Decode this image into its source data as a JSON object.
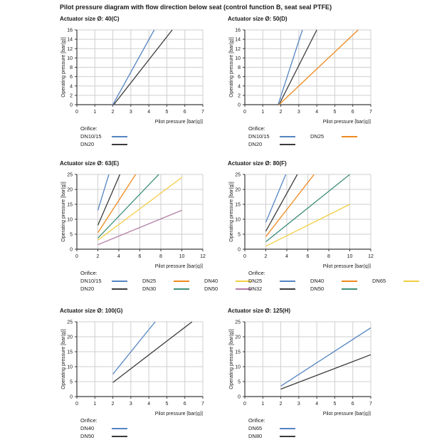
{
  "page_title": "Pilot pressure diagram with flow direction below seat (control function B, seat seal PTFE)",
  "palette": {
    "blue": "#5585c2",
    "dark": "#3b3b3b",
    "orange": "#ee8a1e",
    "teal": "#3f8f7a",
    "yellow": "#f2ce44",
    "purple": "#b07aa1"
  },
  "chart_data": [
    {
      "type": "line",
      "title": "Actuator size Ø: 40(C)",
      "xlabel": "Pilot pressure [bar(g)]",
      "ylabel": "Operating pressure [bar(g)]",
      "xlim": [
        0,
        7
      ],
      "xstep": 1,
      "ylim": [
        0,
        16
      ],
      "ystep": 2,
      "grid": true,
      "legend_title": "Orifice:",
      "series": [
        {
          "name": "DN10/15",
          "color": "blue",
          "points": [
            [
              2.0,
              0
            ],
            [
              4.3,
              16
            ]
          ]
        },
        {
          "name": "DN20",
          "color": "dark",
          "points": [
            [
              2.05,
              0
            ],
            [
              5.3,
              16
            ]
          ]
        }
      ]
    },
    {
      "type": "line",
      "title": "Actuator size Ø: 50(D)",
      "xlabel": "Pilot pressure [bar(g)]",
      "ylabel": "Operating pressure [bar(g)]",
      "xlim": [
        0,
        7
      ],
      "xstep": 1,
      "ylim": [
        0,
        16
      ],
      "ystep": 2,
      "grid": true,
      "legend_title": "Orifice:",
      "series": [
        {
          "name": "DN10/15",
          "color": "blue",
          "points": [
            [
              1.85,
              0
            ],
            [
              3.2,
              16
            ]
          ]
        },
        {
          "name": "DN20",
          "color": "dark",
          "points": [
            [
              1.9,
              0
            ],
            [
              4.0,
              16
            ]
          ]
        },
        {
          "name": "DN25",
          "color": "orange",
          "points": [
            [
              1.9,
              0
            ],
            [
              6.3,
              16
            ]
          ]
        }
      ]
    },
    {
      "type": "line",
      "title": "Actuator size Ø: 63(E)",
      "xlabel": "Pilot pressure [bar(g)]",
      "ylabel": "Operating pressure [bar(g)]",
      "xlim": [
        0,
        12
      ],
      "xstep": 2,
      "ylim": [
        0,
        25
      ],
      "ystep": 5,
      "grid": true,
      "legend_title": "Orifice:",
      "series": [
        {
          "name": "DN10/15",
          "color": "blue",
          "points": [
            [
              2,
              13
            ],
            [
              3.05,
              25
            ]
          ]
        },
        {
          "name": "DN20",
          "color": "dark",
          "points": [
            [
              2,
              8
            ],
            [
              4.1,
              25
            ]
          ]
        },
        {
          "name": "DN25",
          "color": "orange",
          "points": [
            [
              2,
              5.5
            ],
            [
              5.6,
              25
            ]
          ]
        },
        {
          "name": "DN30",
          "color": "teal",
          "points": [
            [
              2,
              3.7
            ],
            [
              7.8,
              25
            ]
          ]
        },
        {
          "name": "DN40",
          "color": "yellow",
          "points": [
            [
              2,
              3
            ],
            [
              10,
              24
            ]
          ]
        },
        {
          "name": "DN50",
          "color": "purple",
          "points": [
            [
              2,
              1.5
            ],
            [
              10,
              13
            ]
          ]
        }
      ]
    },
    {
      "type": "line",
      "title": "Actuator size Ø: 80(F)",
      "xlabel": "Pilot pressure [bar(g)]",
      "ylabel": "Operating pressure [bar(g)]",
      "xlim": [
        0,
        12
      ],
      "xstep": 2,
      "ylim": [
        0,
        25
      ],
      "ystep": 5,
      "grid": true,
      "legend_title": "Orifice:",
      "series": [
        {
          "name": "DN25",
          "color": "blue",
          "points": [
            [
              2,
              9
            ],
            [
              3.9,
              25
            ]
          ]
        },
        {
          "name": "DN32",
          "color": "dark",
          "points": [
            [
              2,
              6
            ],
            [
              5.0,
              25
            ]
          ]
        },
        {
          "name": "DN40",
          "color": "orange",
          "points": [
            [
              2,
              4.2
            ],
            [
              6.6,
              25
            ]
          ]
        },
        {
          "name": "DN50",
          "color": "teal",
          "points": [
            [
              2,
              2.5
            ],
            [
              10,
              25
            ]
          ]
        },
        {
          "name": "DN65",
          "color": "yellow",
          "points": [
            [
              2,
              1
            ],
            [
              10,
              15
            ]
          ]
        }
      ]
    },
    {
      "type": "line",
      "title": "Actuator size Ø: 100(G)",
      "xlabel": "Pilot pressure [bar(g)]",
      "ylabel": "Operating pressure [bar(g)]",
      "xlim": [
        0,
        7
      ],
      "xstep": 1,
      "ylim": [
        0,
        25
      ],
      "ystep": 5,
      "grid": true,
      "legend_title": "Orifice:",
      "series": [
        {
          "name": "DN40",
          "color": "blue",
          "points": [
            [
              2,
              7.5
            ],
            [
              4.35,
              25
            ]
          ]
        },
        {
          "name": "DN50",
          "color": "dark",
          "points": [
            [
              2,
              4.7
            ],
            [
              6.4,
              25
            ]
          ]
        }
      ]
    },
    {
      "type": "line",
      "title": "Actuator size Ø: 125(H)",
      "xlabel": "Pilot pressure [bar(g)]",
      "ylabel": "Operating pressure [bar(g)]",
      "xlim": [
        0,
        7
      ],
      "xstep": 1,
      "ylim": [
        0,
        25
      ],
      "ystep": 5,
      "grid": true,
      "legend_title": "Orifice:",
      "series": [
        {
          "name": "DN65",
          "color": "blue",
          "points": [
            [
              2,
              3.5
            ],
            [
              7,
              23
            ]
          ]
        },
        {
          "name": "DN80",
          "color": "dark",
          "points": [
            [
              2,
              2.5
            ],
            [
              7,
              14
            ]
          ]
        }
      ]
    }
  ]
}
